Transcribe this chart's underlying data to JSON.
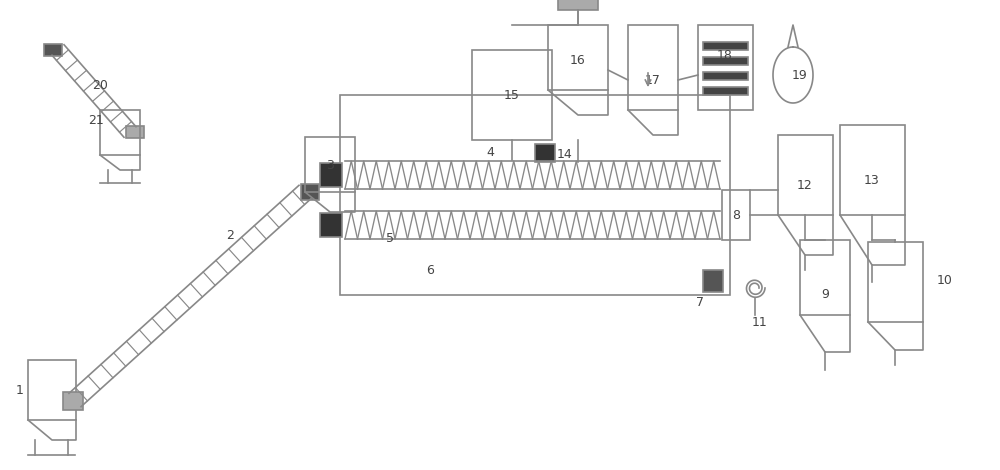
{
  "bg_color": "#ffffff",
  "line_color": "#888888",
  "line_width": 1.2,
  "fig_width": 10.0,
  "fig_height": 4.7
}
